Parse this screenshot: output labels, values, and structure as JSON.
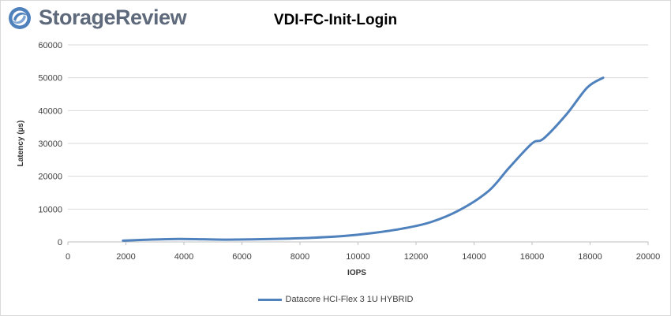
{
  "brand": {
    "name": "StorageReview",
    "icon": "storagereview-swirl-logo",
    "logo_color": "#5e6a7b",
    "icon_color": "#4f81bd"
  },
  "chart_data": {
    "type": "line",
    "title": "VDI-FC-Init-Login",
    "xlabel": "IOPS",
    "ylabel": "Latency (µs)",
    "xlim": [
      0,
      20000
    ],
    "ylim": [
      0,
      60000
    ],
    "x_ticks": [
      "0",
      "2000",
      "4000",
      "6000",
      "8000",
      "10000",
      "12000",
      "14000",
      "16000",
      "18000",
      "20000"
    ],
    "y_ticks": [
      "0",
      "10000",
      "20000",
      "30000",
      "40000",
      "50000",
      "60000"
    ],
    "grid": "horizontal",
    "legend_position": "bottom",
    "series": [
      {
        "name": "Datacore HCI-Flex 3 1U HYBRID",
        "color": "#4f81bd",
        "x": [
          1900,
          2800,
          3800,
          4700,
          5500,
          6500,
          7500,
          8500,
          9500,
          10500,
          11500,
          12500,
          13500,
          14500,
          15200,
          16000,
          16400,
          17200,
          17900,
          18450
        ],
        "y": [
          400,
          700,
          900,
          800,
          700,
          800,
          1000,
          1300,
          1800,
          2700,
          4000,
          6000,
          9700,
          15500,
          22500,
          30000,
          31500,
          39000,
          47000,
          50000
        ]
      }
    ]
  }
}
